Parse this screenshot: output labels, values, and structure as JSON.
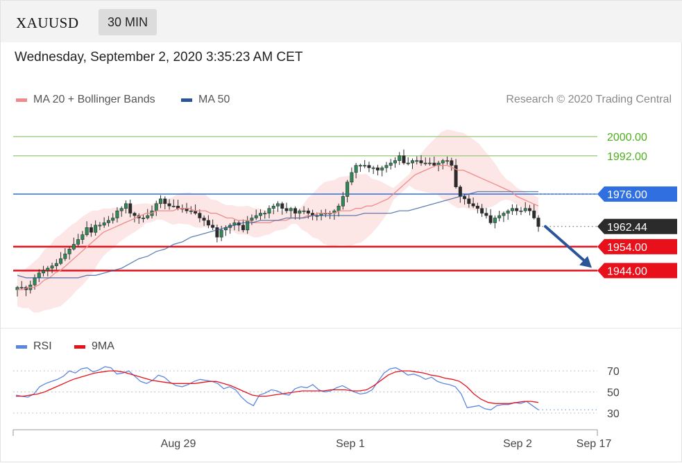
{
  "header": {
    "symbol": "XAUUSD",
    "timeframe": "30 MIN"
  },
  "datetime": "Wednesday, September 2, 2020 3:35:23 AM CET",
  "legend": {
    "ma20_label": "MA 20 + Bollinger Bands",
    "ma50_label": "MA 50",
    "research": "Research © 2020 Trading Central",
    "rsi_label": "RSI",
    "ma9_label": "9MA"
  },
  "colors": {
    "ma20": "#f08a8a",
    "bollinger": "#fde2e2",
    "ma50": "#2a5599",
    "resistance": "#a6d08a",
    "resistance_text": "#4caf1a",
    "pivot": "#2f6fe0",
    "support": "#e8101a",
    "last_price": "#2b2b2b",
    "rsi": "#5b86e0",
    "rsi_ma": "#e8101a",
    "arrow": "#2a5599"
  },
  "chart_data": [
    {
      "type": "candlestick",
      "x_labels": [
        "Aug 29",
        "Sep 1",
        "Sep 2",
        "Sep 17"
      ],
      "ylim": [
        1925,
        2007
      ],
      "levels": [
        {
          "value": 2000.0,
          "label": "2000.00",
          "kind": "resistance"
        },
        {
          "value": 1992.0,
          "label": "1992.00",
          "kind": "resistance"
        },
        {
          "value": 1976.0,
          "label": "1976.00",
          "kind": "pivot"
        },
        {
          "value": 1962.44,
          "label": "1962.44",
          "kind": "last"
        },
        {
          "value": 1954.0,
          "label": "1954.00",
          "kind": "support"
        },
        {
          "value": 1944.0,
          "label": "1944.00",
          "kind": "support"
        }
      ],
      "close_series": [
        1937,
        1937,
        1936,
        1938,
        1941,
        1943,
        1944,
        1945,
        1946,
        1947,
        1949,
        1951,
        1953,
        1955,
        1957,
        1959,
        1962,
        1960,
        1963,
        1963,
        1964,
        1965,
        1966,
        1969,
        1970,
        1972,
        1968,
        1967,
        1966,
        1966,
        1967,
        1969,
        1972,
        1974,
        1972,
        1971,
        1971,
        1970,
        1970,
        1969,
        1969,
        1968,
        1966,
        1965,
        1963,
        1962,
        1958,
        1961,
        1962,
        1963,
        1964,
        1963,
        1961,
        1965,
        1966,
        1967,
        1968,
        1968,
        1970,
        1971,
        1972,
        1970,
        1969,
        1970,
        1968,
        1969,
        1969,
        1968,
        1967,
        1967,
        1968,
        1968,
        1968,
        1969,
        1971,
        1975,
        1981,
        1985,
        1988,
        1988,
        1988,
        1987,
        1987,
        1986,
        1987,
        1988,
        1989,
        1990,
        1992,
        1989,
        1989,
        1990,
        1990,
        1989,
        1989,
        1989,
        1988,
        1989,
        1990,
        1990,
        1988,
        1979,
        1975,
        1974,
        1972,
        1971,
        1970,
        1968,
        1967,
        1964,
        1966,
        1967,
        1968,
        1969,
        1970,
        1969,
        1969,
        1970,
        1969,
        1966,
        1962.44
      ],
      "ma20_series": [
        1936,
        1936,
        1937,
        1937,
        1938,
        1940,
        1941,
        1943,
        1944,
        1946,
        1948,
        1950,
        1952,
        1954,
        1956,
        1958,
        1960,
        1961,
        1962,
        1963,
        1964,
        1965,
        1966,
        1967,
        1968,
        1968,
        1969,
        1969,
        1969,
        1969,
        1970,
        1970,
        1970,
        1969,
        1969,
        1969,
        1968,
        1968,
        1967,
        1966,
        1966,
        1965,
        1965,
        1965,
        1964,
        1964,
        1964,
        1964,
        1965,
        1965,
        1965,
        1966,
        1966,
        1966,
        1967,
        1967,
        1968,
        1968,
        1968,
        1968,
        1969,
        1969,
        1969,
        1970,
        1970,
        1971,
        1971,
        1972,
        1973,
        1974,
        1976,
        1978,
        1980,
        1982,
        1984,
        1985,
        1986,
        1987,
        1988,
        1988,
        1988,
        1987,
        1986,
        1986,
        1985,
        1984,
        1983,
        1982,
        1981,
        1980,
        1979,
        1978,
        1977,
        1975,
        1974,
        1973,
        1972,
        1971
      ],
      "ma50_series": [
        1942,
        1941,
        1941,
        1941,
        1941,
        1941,
        1941,
        1941,
        1942,
        1942,
        1943,
        1944,
        1945,
        1947,
        1949,
        1950,
        1952,
        1953,
        1955,
        1956,
        1958,
        1959,
        1960,
        1961,
        1962,
        1963,
        1964,
        1964,
        1965,
        1965,
        1965,
        1966,
        1966,
        1966,
        1967,
        1967,
        1967,
        1967,
        1967,
        1967,
        1968,
        1968,
        1968,
        1968,
        1969,
        1969,
        1970,
        1971,
        1972,
        1973,
        1974,
        1975,
        1976,
        1977,
        1977,
        1977,
        1977,
        1977,
        1977,
        1977,
        1977
      ]
    },
    {
      "type": "line",
      "ylabels": [
        "70",
        "50",
        "30"
      ],
      "ylim": [
        20,
        78
      ],
      "series": [
        {
          "name": "RSI",
          "values": [
            47,
            46,
            45,
            48,
            55,
            58,
            60,
            62,
            65,
            70,
            68,
            72,
            73,
            69,
            71,
            74,
            73,
            67,
            68,
            70,
            65,
            60,
            58,
            61,
            66,
            64,
            59,
            56,
            55,
            57,
            60,
            62,
            61,
            60,
            58,
            53,
            55,
            52,
            45,
            40,
            37,
            47,
            49,
            52,
            51,
            48,
            47,
            53,
            55,
            54,
            57,
            52,
            50,
            51,
            54,
            56,
            53,
            50,
            48,
            49,
            52,
            60,
            68,
            72,
            73,
            70,
            66,
            67,
            65,
            62,
            64,
            60,
            58,
            57,
            55,
            48,
            35,
            36,
            37,
            34,
            33,
            37,
            38,
            38,
            40,
            39,
            41,
            37,
            33
          ]
        },
        {
          "name": "9MA",
          "values": [
            46,
            46,
            47,
            48,
            50,
            53,
            56,
            59,
            62,
            64,
            66,
            68,
            69,
            70,
            70,
            69,
            67,
            65,
            63,
            61,
            60,
            59,
            58,
            58,
            58,
            58,
            59,
            60,
            60,
            58,
            56,
            53,
            50,
            47,
            46,
            46,
            47,
            48,
            49,
            50,
            51,
            51,
            51,
            51,
            52,
            52,
            52,
            51,
            51,
            52,
            56,
            61,
            66,
            69,
            70,
            70,
            69,
            68,
            66,
            65,
            63,
            62,
            60,
            55,
            48,
            43,
            40,
            39,
            39,
            39,
            40,
            41,
            41,
            40
          ]
        }
      ]
    }
  ]
}
